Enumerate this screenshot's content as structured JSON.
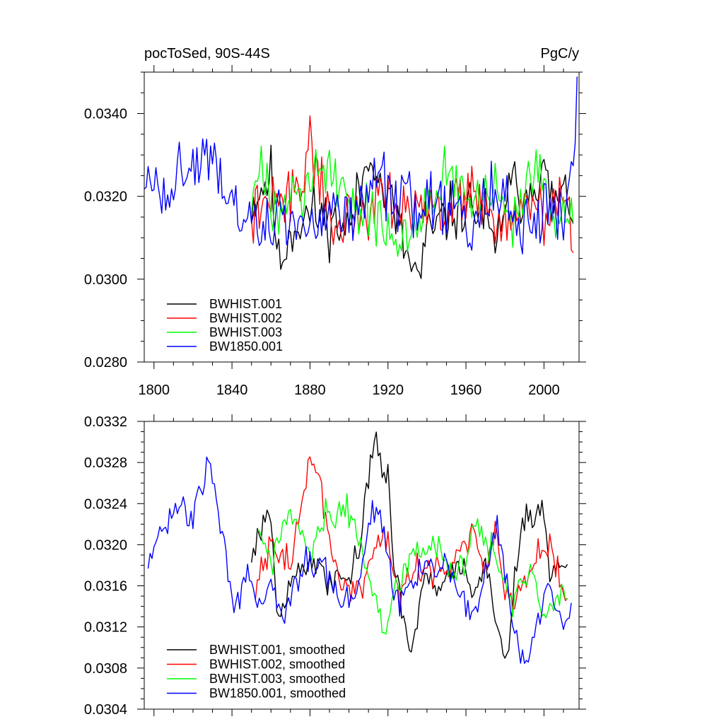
{
  "chart_data": [
    {
      "type": "line",
      "title_left": "pocToSed, 90S-44S",
      "title_right": "PgC/y",
      "xlim": [
        1795,
        2018
      ],
      "ylim": [
        0.028,
        0.035
      ],
      "x_ticks": [
        1800,
        1840,
        1880,
        1920,
        1960,
        2000
      ],
      "x_tick_labels": [
        "1800",
        "1840",
        "1880",
        "1920",
        "1960",
        "2000"
      ],
      "y_ticks": [
        0.028,
        0.03,
        0.032,
        0.034
      ],
      "y_tick_labels": [
        "0.0280",
        "0.0300",
        "0.0320",
        "0.0340"
      ],
      "legend_position": "bottom-left",
      "series": [
        {
          "name": "BWHIST.001",
          "color": "#000000",
          "start": 1850,
          "end": 2015,
          "knots": [
            1850,
            0.0318,
            1855,
            0.0322,
            1860,
            0.0325,
            1864,
            0.0303,
            1870,
            0.0312,
            1880,
            0.0316,
            1890,
            0.0314,
            1900,
            0.0312,
            1905,
            0.032,
            1912,
            0.0333,
            1916,
            0.0322,
            1922,
            0.0318,
            1930,
            0.0305,
            1936,
            0.03,
            1940,
            0.031,
            1950,
            0.0315,
            1960,
            0.0318,
            1970,
            0.0315,
            1975,
            0.0305,
            1980,
            0.032,
            1985,
            0.0322,
            1990,
            0.032,
            1995,
            0.0325,
            2000,
            0.0325,
            2005,
            0.0318,
            2010,
            0.032,
            2015,
            0.0318
          ],
          "amp": 0.0011,
          "seed": 11
        },
        {
          "name": "BWHIST.002",
          "color": "#ff0000",
          "start": 1850,
          "end": 2015,
          "knots": [
            1850,
            0.0315,
            1860,
            0.0318,
            1870,
            0.032,
            1875,
            0.0325,
            1880,
            0.033,
            1886,
            0.0325,
            1892,
            0.0312,
            1900,
            0.0315,
            1910,
            0.0318,
            1916,
            0.0323,
            1922,
            0.032,
            1930,
            0.0318,
            1940,
            0.0317,
            1950,
            0.0316,
            1960,
            0.032,
            1965,
            0.0322,
            1970,
            0.0318,
            1975,
            0.0316,
            1980,
            0.0312,
            1985,
            0.0315,
            1990,
            0.0318,
            2000,
            0.0315,
            2005,
            0.0318,
            2010,
            0.0318,
            2015,
            0.0313
          ],
          "amp": 0.0011,
          "seed": 22
        },
        {
          "name": "BWHIST.003",
          "color": "#00ff00",
          "start": 1850,
          "end": 2015,
          "knots": [
            1850,
            0.032,
            1855,
            0.0325,
            1860,
            0.0318,
            1870,
            0.0323,
            1880,
            0.0322,
            1886,
            0.0328,
            1893,
            0.0325,
            1900,
            0.0318,
            1910,
            0.0317,
            1920,
            0.031,
            1925,
            0.0308,
            1930,
            0.0312,
            1940,
            0.032,
            1950,
            0.0325,
            1957,
            0.0322,
            1962,
            0.0318,
            1970,
            0.032,
            1975,
            0.0322,
            1980,
            0.0315,
            1985,
            0.0312,
            1990,
            0.032,
            1995,
            0.0325,
            2000,
            0.032,
            2005,
            0.0313,
            2010,
            0.0315,
            2015,
            0.0315
          ],
          "amp": 0.0011,
          "seed": 33
        },
        {
          "name": "BW1850.001",
          "color": "#0000ff",
          "start": 1795,
          "end": 2017,
          "knots": [
            1795,
            0.0322,
            1800,
            0.0322,
            1805,
            0.0322,
            1810,
            0.0325,
            1815,
            0.0325,
            1820,
            0.0326,
            1825,
            0.033,
            1830,
            0.0328,
            1835,
            0.0318,
            1840,
            0.0318,
            1845,
            0.0316,
            1850,
            0.0314,
            1855,
            0.0314,
            1860,
            0.0312,
            1870,
            0.0314,
            1880,
            0.0312,
            1890,
            0.0318,
            1900,
            0.0316,
            1910,
            0.0322,
            1915,
            0.0325,
            1920,
            0.032,
            1925,
            0.0316,
            1930,
            0.0318,
            1940,
            0.0318,
            1950,
            0.0318,
            1955,
            0.0316,
            1960,
            0.0316,
            1965,
            0.0313,
            1970,
            0.0318,
            1975,
            0.032,
            1980,
            0.0318,
            1985,
            0.0315,
            1990,
            0.0312,
            1995,
            0.0315,
            2000,
            0.0315,
            2005,
            0.0317,
            2010,
            0.0312,
            2015,
            0.033,
            2017,
            0.034
          ],
          "amp": 0.0012,
          "seed": 44
        }
      ]
    },
    {
      "type": "line",
      "xlim": [
        1795,
        2018
      ],
      "ylim": [
        0.0304,
        0.0332
      ],
      "x_ticks": [
        1800,
        1840,
        1880,
        1920,
        1960,
        2000
      ],
      "y_ticks": [
        0.0304,
        0.0308,
        0.0312,
        0.0316,
        0.032,
        0.0324,
        0.0328,
        0.0332
      ],
      "y_tick_labels": [
        "0.0304",
        "0.0308",
        "0.0312",
        "0.0316",
        "0.0320",
        "0.0324",
        "0.0328",
        "0.0332"
      ],
      "legend_position": "bottom-left",
      "series": [
        {
          "name": "BWHIST.001, smoothed",
          "color": "#000000",
          "start": 1850,
          "end": 2012,
          "knots": [
            1850,
            0.0319,
            1853,
            0.0321,
            1857,
            0.0323,
            1860,
            0.0322,
            1863,
            0.0314,
            1866,
            0.0313,
            1870,
            0.0316,
            1874,
            0.0318,
            1878,
            0.0318,
            1882,
            0.0319,
            1886,
            0.0318,
            1890,
            0.0316,
            1895,
            0.0317,
            1900,
            0.0317,
            1905,
            0.0319,
            1908,
            0.0324,
            1911,
            0.0327,
            1914,
            0.033,
            1917,
            0.0328,
            1920,
            0.0326,
            1923,
            0.0318,
            1926,
            0.0315,
            1929,
            0.0311,
            1932,
            0.0309,
            1935,
            0.0313,
            1940,
            0.0317,
            1945,
            0.0316,
            1950,
            0.0317,
            1955,
            0.0318,
            1960,
            0.0317,
            1965,
            0.0316,
            1970,
            0.0318,
            1973,
            0.0316,
            1976,
            0.0312,
            1979,
            0.0309,
            1982,
            0.031,
            1985,
            0.0316,
            1988,
            0.0322,
            1991,
            0.0324,
            1994,
            0.0322,
            1997,
            0.0324,
            2000,
            0.0323,
            2003,
            0.0318,
            2006,
            0.0318,
            2009,
            0.0318,
            2012,
            0.0318
          ],
          "amp": 0.00022,
          "seed": 55
        },
        {
          "name": "BWHIST.002, smoothed",
          "color": "#ff0000",
          "start": 1852,
          "end": 2012,
          "knots": [
            1852,
            0.0316,
            1855,
            0.0318,
            1860,
            0.032,
            1865,
            0.0319,
            1870,
            0.0318,
            1874,
            0.0322,
            1878,
            0.0326,
            1881,
            0.0329,
            1884,
            0.0327,
            1888,
            0.0323,
            1892,
            0.0318,
            1896,
            0.0316,
            1900,
            0.0316,
            1905,
            0.0316,
            1910,
            0.0318,
            1915,
            0.032,
            1918,
            0.0322,
            1922,
            0.0318,
            1926,
            0.0315,
            1930,
            0.0317,
            1935,
            0.0318,
            1940,
            0.0317,
            1945,
            0.0318,
            1950,
            0.0318,
            1955,
            0.0319,
            1960,
            0.032,
            1963,
            0.0322,
            1966,
            0.0319,
            1970,
            0.0318,
            1975,
            0.0322,
            1978,
            0.0317,
            1981,
            0.0315,
            1985,
            0.0314,
            1990,
            0.0316,
            1995,
            0.0318,
            2000,
            0.032,
            2004,
            0.032,
            2008,
            0.0317,
            2012,
            0.0314
          ],
          "amp": 0.00022,
          "seed": 66
        },
        {
          "name": "BWHIST.003, smoothed",
          "color": "#00ff00",
          "start": 1853,
          "end": 2012,
          "knots": [
            1853,
            0.0322,
            1857,
            0.032,
            1860,
            0.0318,
            1865,
            0.0321,
            1870,
            0.0323,
            1875,
            0.0321,
            1880,
            0.0319,
            1885,
            0.0321,
            1888,
            0.0323,
            1893,
            0.0322,
            1897,
            0.0324,
            1902,
            0.0322,
            1906,
            0.032,
            1910,
            0.0317,
            1913,
            0.0315,
            1916,
            0.0313,
            1919,
            0.0312,
            1922,
            0.0314,
            1926,
            0.0316,
            1930,
            0.0318,
            1935,
            0.032,
            1940,
            0.0319,
            1945,
            0.032,
            1950,
            0.0318,
            1955,
            0.0317,
            1960,
            0.0318,
            1963,
            0.0321,
            1966,
            0.0322,
            1970,
            0.032,
            1975,
            0.0319,
            1980,
            0.0316,
            1984,
            0.0314,
            1988,
            0.0316,
            1992,
            0.0318,
            1995,
            0.0316,
            1998,
            0.0314,
            2002,
            0.0313,
            2006,
            0.0314,
            2009,
            0.0315,
            2012,
            0.0315
          ],
          "amp": 0.00022,
          "seed": 77
        },
        {
          "name": "BW1850.001, smoothed",
          "color": "#0000ff",
          "start": 1797,
          "end": 2014,
          "knots": [
            1797,
            0.0319,
            1800,
            0.032,
            1804,
            0.0322,
            1808,
            0.0322,
            1812,
            0.0324,
            1816,
            0.0324,
            1820,
            0.0323,
            1824,
            0.0325,
            1828,
            0.0328,
            1831,
            0.0326,
            1834,
            0.0321,
            1837,
            0.0319,
            1840,
            0.0315,
            1843,
            0.0314,
            1846,
            0.0316,
            1850,
            0.0317,
            1853,
            0.0315,
            1857,
            0.0314,
            1860,
            0.0316,
            1863,
            0.0315,
            1866,
            0.0313,
            1870,
            0.0314,
            1874,
            0.0316,
            1878,
            0.0318,
            1882,
            0.0318,
            1886,
            0.0318,
            1890,
            0.0316,
            1895,
            0.0314,
            1900,
            0.0315,
            1905,
            0.0316,
            1910,
            0.0322,
            1914,
            0.0324,
            1918,
            0.0321,
            1922,
            0.0316,
            1926,
            0.0314,
            1930,
            0.0316,
            1935,
            0.0317,
            1940,
            0.0318,
            1945,
            0.0317,
            1950,
            0.0318,
            1955,
            0.0316,
            1960,
            0.0314,
            1965,
            0.0313,
            1970,
            0.0317,
            1973,
            0.032,
            1976,
            0.0322,
            1979,
            0.0319,
            1982,
            0.0315,
            1986,
            0.0311,
            1990,
            0.0308,
            1994,
            0.0311,
            1998,
            0.0314,
            2002,
            0.0316,
            2006,
            0.0314,
            2010,
            0.0312,
            2014,
            0.0314
          ],
          "amp": 0.00022,
          "seed": 88
        }
      ]
    }
  ]
}
